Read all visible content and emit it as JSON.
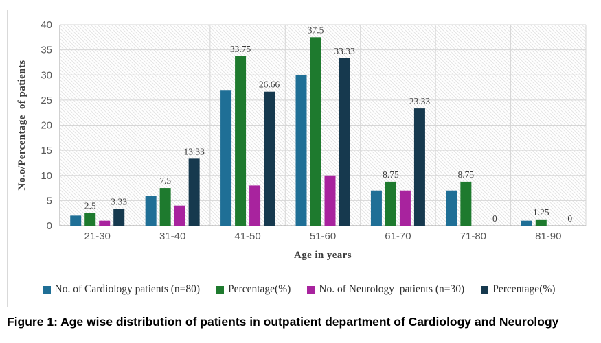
{
  "chart_data": {
    "type": "bar",
    "title": "",
    "categories": [
      "21-30",
      "31-40",
      "41-50",
      "51-60",
      "61-70",
      "71-80",
      "81-90"
    ],
    "series": [
      {
        "name": "No. of Cardiology patients (n=80)",
        "color": "#1F6F96",
        "values": [
          2,
          6,
          27,
          30,
          7,
          7,
          1
        ],
        "show_labels": false,
        "labels": []
      },
      {
        "name": "Percentage(%)",
        "color": "#1E7A2E",
        "values": [
          2.5,
          7.5,
          33.75,
          37.5,
          8.75,
          8.75,
          1.25
        ],
        "show_labels": true,
        "labels": [
          "2.5",
          "7.5",
          "33.75",
          "37.5",
          "8.75",
          "8.75",
          "1.25"
        ]
      },
      {
        "name": "No. of Neurology  patients (n=30)",
        "color": "#A8239E",
        "values": [
          1,
          4,
          8,
          10,
          7,
          0,
          0
        ],
        "show_labels": false,
        "labels": []
      },
      {
        "name": "Percentage(%)",
        "color": "#16394E",
        "values": [
          3.33,
          13.33,
          26.66,
          33.33,
          23.33,
          0,
          0
        ],
        "show_labels": true,
        "labels": [
          "3.33",
          "13.33",
          "26.66",
          "33.33",
          "23.33",
          "0",
          "0"
        ]
      }
    ],
    "xlabel": "Age in years",
    "ylabel": "No.o/Percentage  of patients",
    "ylim": [
      0,
      40
    ],
    "ytick_step": 5,
    "grid": true,
    "plot_background": "diagonal-hatch",
    "legend_position": "bottom"
  },
  "caption": "Figure 1: Age wise distribution of patients in outpatient department of Cardiology and Neurology",
  "colors": {
    "panel_border": "#d9d9d9",
    "gridline": "#d6d6d6",
    "hatch_line": "#e4e4e4",
    "axis_line": "#a3a3a3",
    "tick_text": "#595959",
    "data_label_text": "#3d3d3d",
    "legend_text": "#303030"
  }
}
